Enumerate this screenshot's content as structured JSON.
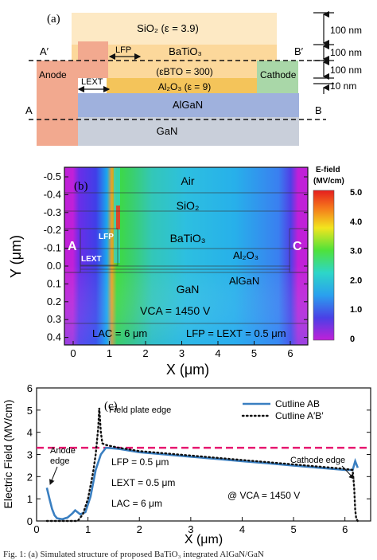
{
  "panel_a": {
    "label": "(a)",
    "layers": {
      "sio2": "SiO₂ (ε = 3.9)",
      "batio3": "BaTiO₃",
      "eps_bto": "(εBTO = 300)",
      "al2o3": "Al₂O₃ (ε = 9)",
      "algan": "AlGaN",
      "gan": "GaN",
      "anode": "Anode",
      "cathode": "Cathode"
    },
    "markers": {
      "a_prime": "A′",
      "b_prime": "B′",
      "a": "A",
      "b": "B",
      "lfp": "LFP",
      "lext": "LEXT"
    },
    "dimensions": [
      "100 nm",
      "100 nm",
      "100 nm",
      "10 nm"
    ]
  },
  "panel_b": {
    "label": "(b)",
    "ylabel": "Y (μm)",
    "xlabel": "X (μm)",
    "yticks": [
      "-0.5",
      "-0.4",
      "-0.3",
      "-0.2",
      "-0.1",
      "0.0",
      "0.1",
      "0.2",
      "0.3",
      "0.4"
    ],
    "xticks": [
      "0",
      "1",
      "2",
      "3",
      "4",
      "5",
      "6"
    ],
    "region_labels": {
      "air": "Air",
      "sio2": "SiO₂",
      "batio3": "BaTiO₃",
      "al2o3": "Al₂O₃",
      "algan": "AlGaN",
      "gan": "GaN",
      "anode": "A",
      "cathode": "C",
      "lfp": "LFP",
      "lext": "LEXT"
    },
    "conditions": {
      "vca": "VCA = 1450 V",
      "lac": "LAC = 6 μm",
      "lfp_lext": "LFP = LEXT = 0.5 μm"
    },
    "colorbar": {
      "title": "E-field",
      "unit": "(MV/cm)",
      "ticks": [
        "5.0",
        "4.0",
        "3.0",
        "2.0",
        "1.0",
        "0"
      ]
    }
  },
  "chart_data": {
    "type": "line",
    "label": "(c)",
    "xlabel": "X (μm)",
    "ylabel": "Electric Field (MV/cm)",
    "xlim": [
      0,
      6.5
    ],
    "ylim": [
      0,
      6
    ],
    "xticks": [
      0,
      1,
      2,
      3,
      4,
      5,
      6
    ],
    "yticks": [
      0,
      1,
      2,
      3,
      4,
      5,
      6
    ],
    "reference_line": 3.3,
    "legend_position": "top-right",
    "series": [
      {
        "name": "Cutline AB",
        "style": "solid",
        "color": "#3a7fc1",
        "x": [
          0.2,
          0.25,
          0.3,
          0.35,
          0.4,
          0.5,
          0.6,
          0.7,
          0.75,
          0.85,
          0.95,
          1.05,
          1.15,
          1.25,
          1.35,
          1.6,
          2.0,
          2.5,
          3.0,
          3.5,
          4.0,
          4.5,
          5.0,
          5.5,
          6.0,
          6.15,
          6.2,
          6.25
        ],
        "y": [
          1.5,
          1.0,
          0.55,
          0.25,
          0.12,
          0.08,
          0.15,
          0.35,
          0.48,
          0.3,
          0.4,
          1.1,
          2.3,
          3.0,
          3.3,
          3.25,
          3.1,
          3.0,
          2.9,
          2.8,
          2.7,
          2.6,
          2.5,
          2.4,
          2.3,
          2.3,
          2.7,
          2.4
        ]
      },
      {
        "name": "Cutline A′B′",
        "style": "dotted",
        "color": "#111111",
        "x": [
          0.2,
          0.5,
          0.8,
          0.9,
          1.0,
          1.1,
          1.15,
          1.2,
          1.22,
          1.25,
          1.28,
          1.32,
          1.4,
          1.6,
          2.0,
          2.5,
          3.0,
          3.5,
          4.0,
          4.5,
          5.0,
          5.5,
          6.0,
          6.15,
          6.18,
          6.2,
          6.22,
          6.25
        ],
        "y": [
          0,
          0,
          0,
          0.3,
          1.0,
          2.2,
          3.0,
          4.2,
          5.1,
          4.0,
          3.5,
          3.45,
          3.4,
          3.3,
          3.15,
          3.05,
          2.95,
          2.85,
          2.75,
          2.65,
          2.55,
          2.45,
          2.35,
          2.3,
          1.5,
          0.5,
          0.1,
          0
        ]
      }
    ],
    "annotations": {
      "field_plate": "Field plate edge",
      "anode_edge": [
        "Anode",
        "edge"
      ],
      "cathode_edge": "Cathode edge",
      "lfp": "LFP = 0.5 μm",
      "lext": "LEXT = 0.5 μm",
      "lac": "LAC = 6 μm",
      "vca": "@ VCA = 1450 V"
    }
  },
  "caption": "Fig. 1: (a) Simulated structure of proposed BaTiO₃ integrated AlGaN/GaN"
}
